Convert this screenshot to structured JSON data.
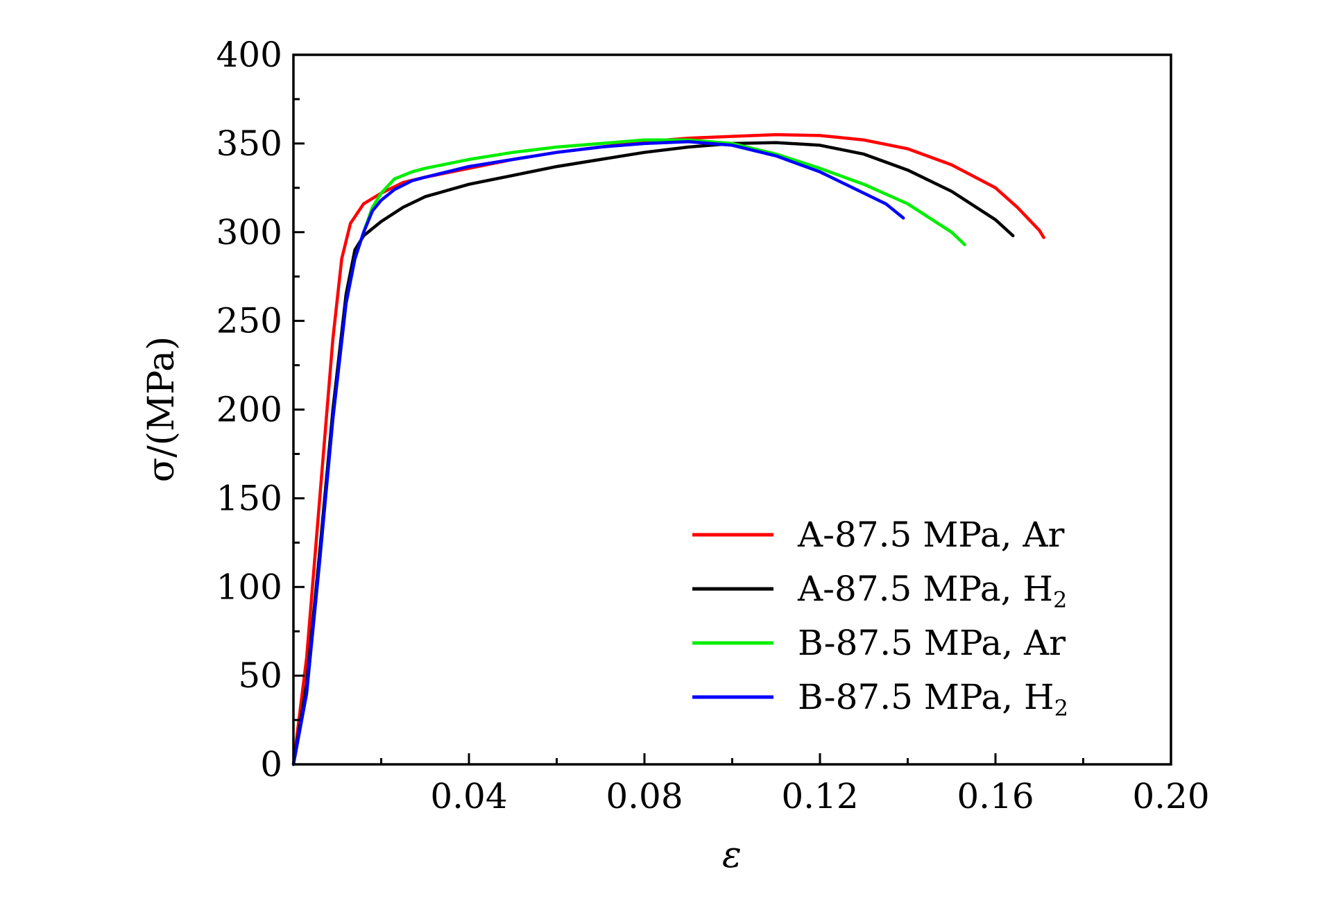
{
  "chart_data": {
    "type": "line",
    "title": "",
    "xlabel": "ε",
    "ylabel": "σ/(MPa)",
    "xlim": [
      0,
      0.2
    ],
    "ylim": [
      0,
      400
    ],
    "xticks": [
      0.04,
      0.08,
      0.12,
      0.16,
      0.2
    ],
    "xtick_labels": [
      "0.04",
      "0.08",
      "0.12",
      "0.16",
      "0.20"
    ],
    "yticks": [
      0,
      50,
      100,
      150,
      200,
      250,
      300,
      350,
      400
    ],
    "ytick_labels": [
      "0",
      "50",
      "100",
      "150",
      "200",
      "250",
      "300",
      "350",
      "400"
    ],
    "grid": false,
    "legend_position": "bottom-right",
    "series": [
      {
        "name": "A-87.5 MPa, Ar",
        "label_main": "A-87.5 MPa, Ar",
        "label_sub": "",
        "color": "#ff0000",
        "points": [
          [
            0,
            0
          ],
          [
            0.003,
            60
          ],
          [
            0.006,
            150
          ],
          [
            0.009,
            240
          ],
          [
            0.011,
            285
          ],
          [
            0.013,
            305
          ],
          [
            0.016,
            316
          ],
          [
            0.02,
            322
          ],
          [
            0.025,
            328
          ],
          [
            0.03,
            331
          ],
          [
            0.04,
            336
          ],
          [
            0.05,
            341
          ],
          [
            0.06,
            345
          ],
          [
            0.07,
            348
          ],
          [
            0.08,
            351
          ],
          [
            0.09,
            353
          ],
          [
            0.1,
            354
          ],
          [
            0.11,
            355
          ],
          [
            0.12,
            354.5
          ],
          [
            0.13,
            352
          ],
          [
            0.14,
            347
          ],
          [
            0.15,
            338
          ],
          [
            0.16,
            325
          ],
          [
            0.165,
            314
          ],
          [
            0.17,
            301
          ],
          [
            0.171,
            297
          ]
        ]
      },
      {
        "name": "A-87.5 MPa, H2",
        "label_main": "A-87.5 MPa, H",
        "label_sub": "2",
        "color": "#000000",
        "points": [
          [
            0,
            0
          ],
          [
            0.003,
            45
          ],
          [
            0.006,
            120
          ],
          [
            0.009,
            200
          ],
          [
            0.012,
            265
          ],
          [
            0.014,
            290
          ],
          [
            0.016,
            298
          ],
          [
            0.02,
            306
          ],
          [
            0.025,
            314
          ],
          [
            0.03,
            320
          ],
          [
            0.04,
            327
          ],
          [
            0.05,
            332
          ],
          [
            0.06,
            337
          ],
          [
            0.07,
            341
          ],
          [
            0.08,
            345
          ],
          [
            0.09,
            348
          ],
          [
            0.1,
            350
          ],
          [
            0.11,
            350.5
          ],
          [
            0.12,
            349
          ],
          [
            0.13,
            344
          ],
          [
            0.14,
            335
          ],
          [
            0.15,
            323
          ],
          [
            0.16,
            307
          ],
          [
            0.164,
            298
          ]
        ]
      },
      {
        "name": "B-87.5 MPa, Ar",
        "label_main": "B-87.5 MPa, Ar",
        "label_sub": "",
        "color": "#00ee00",
        "points": [
          [
            0,
            0
          ],
          [
            0.003,
            40
          ],
          [
            0.006,
            115
          ],
          [
            0.009,
            195
          ],
          [
            0.012,
            260
          ],
          [
            0.014,
            285
          ],
          [
            0.016,
            300
          ],
          [
            0.018,
            314
          ],
          [
            0.02,
            322
          ],
          [
            0.023,
            330
          ],
          [
            0.027,
            334
          ],
          [
            0.03,
            336
          ],
          [
            0.04,
            341
          ],
          [
            0.05,
            345
          ],
          [
            0.06,
            348
          ],
          [
            0.07,
            350
          ],
          [
            0.08,
            352
          ],
          [
            0.09,
            352
          ],
          [
            0.1,
            350
          ],
          [
            0.11,
            344
          ],
          [
            0.12,
            336
          ],
          [
            0.13,
            327
          ],
          [
            0.14,
            316
          ],
          [
            0.15,
            300
          ],
          [
            0.153,
            293
          ]
        ]
      },
      {
        "name": "B-87.5 MPa, H2",
        "label_main": "B-87.5 MPa, H",
        "label_sub": "2",
        "color": "#0000ff",
        "points": [
          [
            0,
            0
          ],
          [
            0.003,
            40
          ],
          [
            0.006,
            115
          ],
          [
            0.009,
            195
          ],
          [
            0.012,
            260
          ],
          [
            0.014,
            285
          ],
          [
            0.016,
            300
          ],
          [
            0.018,
            312
          ],
          [
            0.02,
            318
          ],
          [
            0.023,
            324
          ],
          [
            0.027,
            329
          ],
          [
            0.03,
            331
          ],
          [
            0.04,
            337
          ],
          [
            0.05,
            341
          ],
          [
            0.06,
            345
          ],
          [
            0.07,
            348
          ],
          [
            0.08,
            350
          ],
          [
            0.09,
            351
          ],
          [
            0.1,
            349
          ],
          [
            0.11,
            343
          ],
          [
            0.12,
            334
          ],
          [
            0.13,
            322
          ],
          [
            0.135,
            316
          ],
          [
            0.139,
            308
          ]
        ]
      }
    ]
  }
}
